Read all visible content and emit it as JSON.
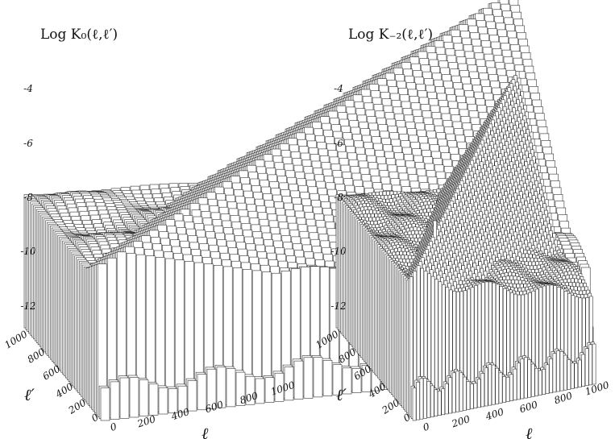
{
  "chart_data": [
    {
      "type": "3d-bar",
      "title": "Log K₀(ℓ,ℓ′)",
      "z_axis": {
        "ticks": [
          "-4",
          "-6",
          "-8",
          "-10",
          "-12"
        ],
        "range": [
          -13,
          -3
        ]
      },
      "x_axis": {
        "label": "ℓ",
        "ticks": [
          "0",
          "200",
          "400",
          "600",
          "800",
          "1000"
        ],
        "range": [
          0,
          1000
        ]
      },
      "y_axis": {
        "label": "ℓ′",
        "ticks": [
          "0",
          "200",
          "400",
          "600",
          "800",
          "1000"
        ],
        "range": [
          0,
          1000
        ]
      },
      "surface": {
        "floor": -13,
        "near_edge_level": -11.8,
        "plateau_level": -8.1,
        "diagonal_peak": {
          "at_l0": -7.2,
          "at_l1000": -2.6
        },
        "far_corner_level": -9.3,
        "spike": {
          "l": 200,
          "lp": 200,
          "level": -6.8
        },
        "ripple_amplitude": 0.35
      }
    },
    {
      "type": "3d-bar",
      "title": "Log K₋₂(ℓ,ℓ′)",
      "z_axis": {
        "ticks": [
          "-4",
          "-6",
          "-8",
          "-10",
          "-12"
        ],
        "range": [
          -13,
          -3
        ]
      },
      "x_axis": {
        "label": "ℓ",
        "ticks": [
          "0",
          "200",
          "400",
          "600",
          "800",
          "1000"
        ],
        "range": [
          0,
          1000
        ]
      },
      "y_axis": {
        "label": "ℓ′",
        "ticks": [
          "0",
          "200",
          "400",
          "600",
          "800",
          "1000"
        ],
        "range": [
          0,
          1000
        ]
      },
      "surface": {
        "floor": -13,
        "near_edge_level": -11.8,
        "plateau_level": -8.1,
        "diagonal_peak": {
          "at_l0": -7.6,
          "at_l1000": -4.9
        },
        "far_corner_level": -9.8,
        "spike": {
          "l": 200,
          "lp": 200,
          "level": -6.6
        },
        "ripple_amplitude": 0.25
      }
    }
  ]
}
